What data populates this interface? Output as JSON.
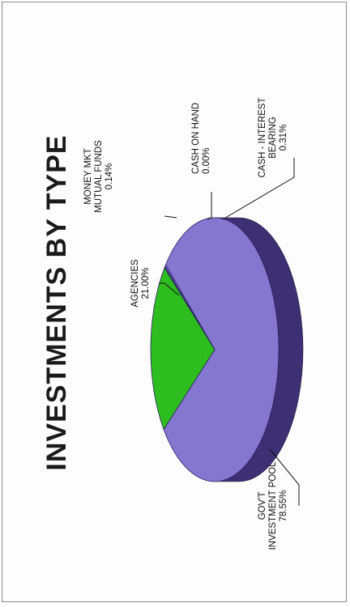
{
  "chart_data": {
    "type": "pie",
    "title": "INVESTMENTS BY TYPE",
    "slices": [
      {
        "label": [
          "GOV'T",
          "INVESTMENT POOL"
        ],
        "pct_text": "78.55%",
        "value": 78.55,
        "color": "#8576cf",
        "side": "#3c2f73"
      },
      {
        "label": [
          "AGENCIES"
        ],
        "pct_text": "21.00%",
        "value": 21.0,
        "color": "#2ebd1f",
        "side": "#1f6f16"
      },
      {
        "label": [
          "MONEY MKT",
          "MUTUAL FUNDS"
        ],
        "pct_text": "0.14%",
        "value": 0.14,
        "color": "#6f66c0",
        "side": "#3a3070"
      },
      {
        "label": [
          "CASH ON HAND"
        ],
        "pct_text": "0.00%",
        "value": 0.0,
        "color": "#6f66c0",
        "side": "#3a3070"
      },
      {
        "label": [
          "CASH - INTEREST",
          "BEARING"
        ],
        "pct_text": "0.31%",
        "value": 0.31,
        "color": "#6f66c0",
        "side": "#3a3070"
      }
    ],
    "legend": "none",
    "style": "3d-pie"
  }
}
